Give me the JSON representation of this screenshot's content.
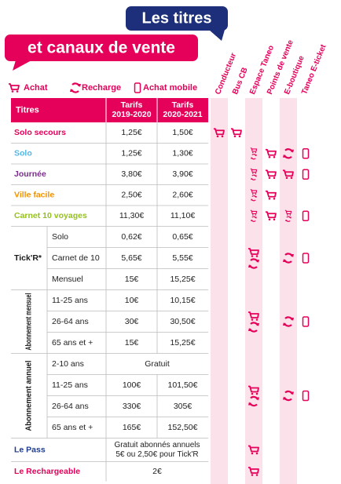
{
  "header": {
    "title": "Les titres",
    "subtitle": "et canaux de vente"
  },
  "legend": [
    "Achat",
    "Recharge",
    "Achat mobile"
  ],
  "channels": [
    "Conducteur",
    "Bus CB",
    "Espace Taneo",
    "Points de vente",
    "E-boutique",
    "Taneo E-ticket"
  ],
  "table": {
    "columns": [
      "Titres",
      [
        "Tarifs",
        "2019-2020"
      ],
      [
        "Tarifs",
        "2020-2021"
      ]
    ],
    "rows": [
      {
        "name": "Solo secours",
        "color": "#e5005a",
        "prices": [
          "1,25€",
          "1,50€"
        ]
      },
      {
        "name": "Solo",
        "color": "#4fb8e6",
        "prices": [
          "1,25€",
          "1,30€"
        ]
      },
      {
        "name": "Journée",
        "color": "#7b2d8e",
        "prices": [
          "3,80€",
          "3,90€"
        ]
      },
      {
        "name": "Ville facile",
        "color": "#f39200",
        "prices": [
          "2,50€",
          "2,60€"
        ]
      },
      {
        "name": "Carnet 10 voyages",
        "color": "#95c11f",
        "prices": [
          "11,30€",
          "11,10€"
        ]
      },
      {
        "name": "Tick'R*",
        "color": "#1a1a1a",
        "rows": [
          {
            "label": "Solo",
            "prices": [
              "0,62€",
              "0,65€"
            ]
          },
          {
            "label": "Carnet de 10",
            "prices": [
              "5,65€",
              "5,55€"
            ]
          },
          {
            "label": "Mensuel",
            "prices": [
              "15€",
              "15,25€"
            ]
          }
        ]
      },
      {
        "name": "Abonnement mensuel",
        "color": "#1a1a1a",
        "rows": [
          {
            "label": "11-25 ans",
            "prices": [
              "10€",
              "10,15€"
            ]
          },
          {
            "label": "26-64 ans",
            "prices": [
              "30€",
              "30,50€"
            ]
          },
          {
            "label": "65 ans et +",
            "prices": [
              "15€",
              "15,25€"
            ]
          }
        ]
      },
      {
        "name": "Abonnement annuel",
        "color": "#1a1a1a",
        "rows": [
          {
            "label": "2-10 ans",
            "price": "Gratuit"
          },
          {
            "label": "11-25 ans",
            "prices": [
              "100€",
              "101,50€"
            ]
          },
          {
            "label": "26-64 ans",
            "prices": [
              "330€",
              "305€"
            ]
          },
          {
            "label": "65 ans et +",
            "prices": [
              "165€",
              "152,50€"
            ]
          }
        ]
      },
      {
        "name": "Le Pass",
        "color": "#1d3c8f",
        "price": [
          "Gratuit abonnés annuels",
          "5€ ou 2,50€ pour Tick'R"
        ]
      },
      {
        "name": "Le Rechargeable",
        "color": "#e5005a",
        "price": "2€"
      }
    ]
  }
}
